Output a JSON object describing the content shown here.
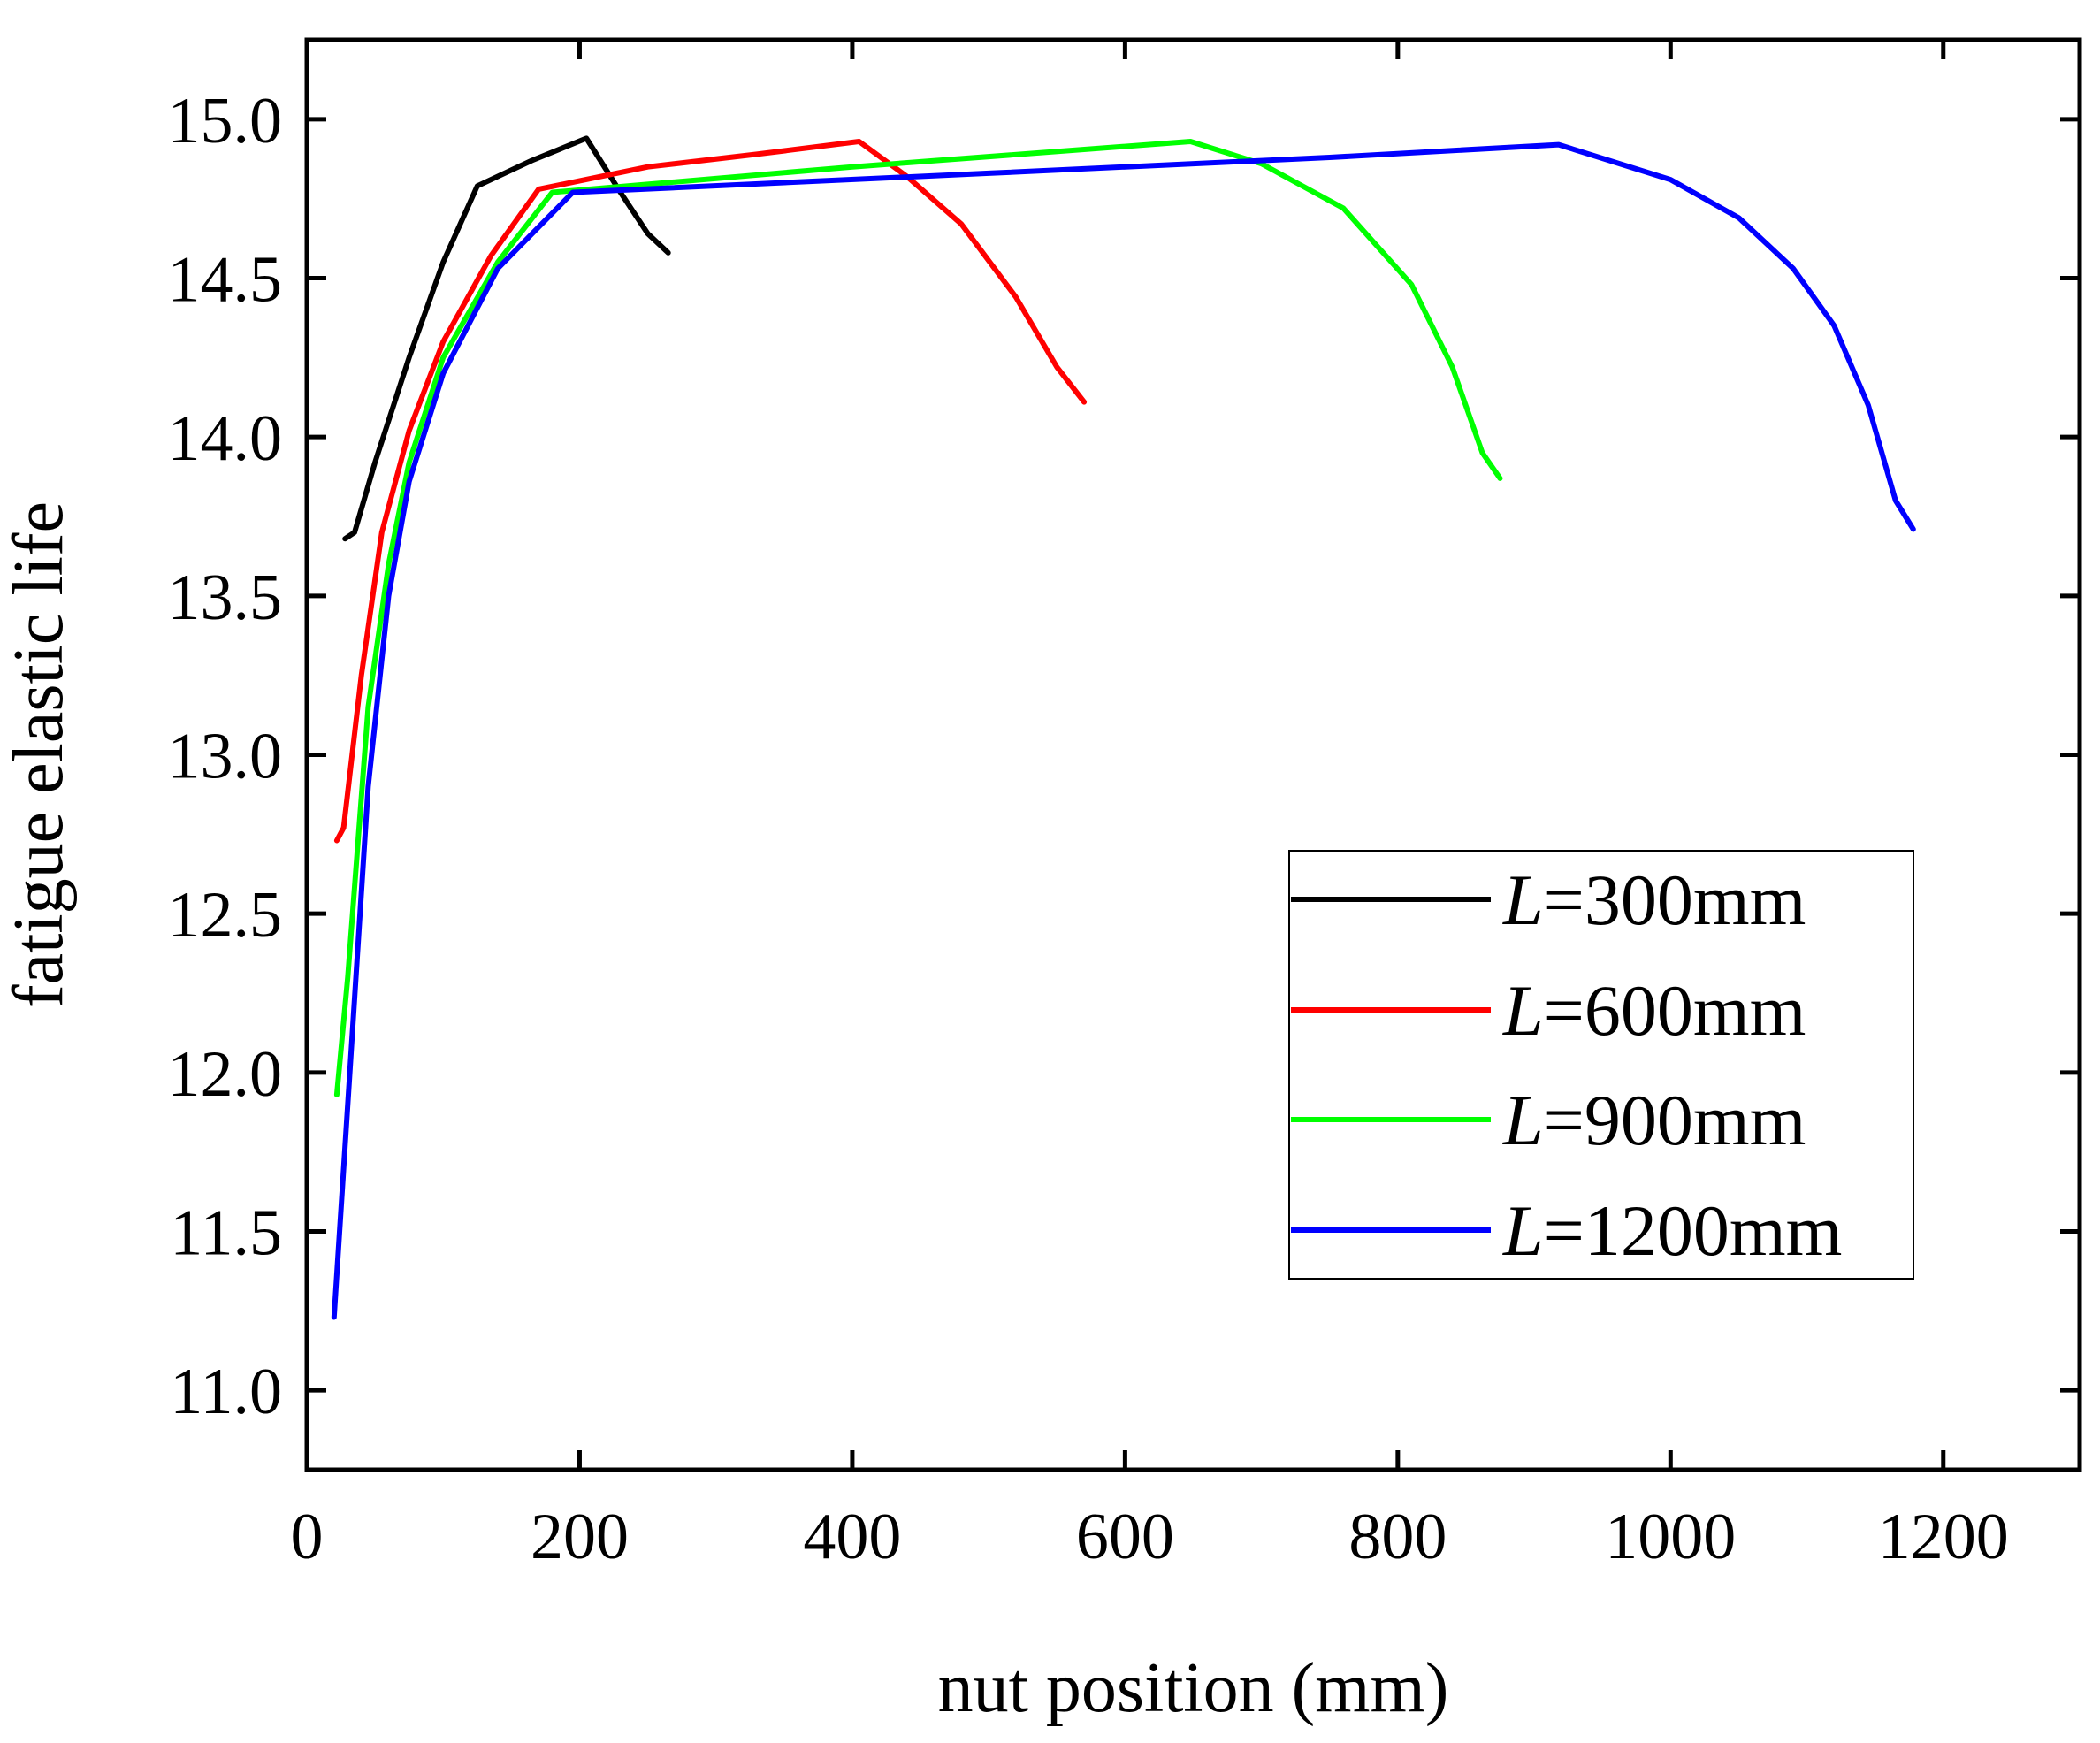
{
  "chart_data": {
    "type": "line",
    "title": "",
    "xlabel": "nut position (mm)",
    "ylabel": "fatigue elastic life",
    "xlim": [
      0,
      1300
    ],
    "ylim": [
      10.75,
      15.25
    ],
    "x_ticks": [
      0,
      200,
      400,
      600,
      800,
      1000,
      1200
    ],
    "x_tick_labels": [
      "0",
      "200",
      "400",
      "600",
      "800",
      "1000",
      "1200"
    ],
    "y_ticks": [
      11.0,
      11.5,
      12.0,
      12.5,
      13.0,
      13.5,
      14.0,
      14.5,
      15.0
    ],
    "y_tick_labels": [
      "11.0",
      "11.5",
      "12.0",
      "12.5",
      "13.0",
      "13.5",
      "14.0",
      "14.5",
      "15.0"
    ],
    "grid": false,
    "legend_position": "bottom-right",
    "series": [
      {
        "name_italic": "L",
        "name_rest": "=300mm",
        "color": "#000000",
        "points": [
          [
            28,
            13.68
          ],
          [
            35,
            13.7
          ],
          [
            50,
            13.92
          ],
          [
            75,
            14.25
          ],
          [
            100,
            14.55
          ],
          [
            125,
            14.79
          ],
          [
            165,
            14.87
          ],
          [
            205,
            14.94
          ],
          [
            230,
            14.77
          ],
          [
            250,
            14.64
          ],
          [
            265,
            14.58
          ]
        ]
      },
      {
        "name_italic": "L",
        "name_rest": "=600mm",
        "color": "#ff0000",
        "points": [
          [
            22,
            12.73
          ],
          [
            27,
            12.77
          ],
          [
            40,
            13.25
          ],
          [
            55,
            13.7
          ],
          [
            75,
            14.02
          ],
          [
            100,
            14.3
          ],
          [
            135,
            14.57
          ],
          [
            170,
            14.78
          ],
          [
            250,
            14.85
          ],
          [
            330,
            14.89
          ],
          [
            405,
            14.93
          ],
          [
            440,
            14.82
          ],
          [
            480,
            14.67
          ],
          [
            520,
            14.44
          ],
          [
            550,
            14.22
          ],
          [
            570,
            14.11
          ]
        ]
      },
      {
        "name_italic": "L",
        "name_rest": "=900mm",
        "color": "#00ff00",
        "points": [
          [
            22,
            11.93
          ],
          [
            30,
            12.3
          ],
          [
            45,
            13.15
          ],
          [
            60,
            13.6
          ],
          [
            75,
            13.92
          ],
          [
            100,
            14.25
          ],
          [
            140,
            14.55
          ],
          [
            180,
            14.77
          ],
          [
            400,
            14.85
          ],
          [
            648,
            14.93
          ],
          [
            700,
            14.86
          ],
          [
            760,
            14.72
          ],
          [
            810,
            14.48
          ],
          [
            840,
            14.22
          ],
          [
            862,
            13.95
          ],
          [
            875,
            13.87
          ]
        ]
      },
      {
        "name_italic": "L",
        "name_rest": "=1200mm",
        "color": "#0000ff",
        "points": [
          [
            20,
            11.23
          ],
          [
            30,
            11.9
          ],
          [
            45,
            12.9
          ],
          [
            60,
            13.5
          ],
          [
            75,
            13.86
          ],
          [
            100,
            14.2
          ],
          [
            140,
            14.53
          ],
          [
            195,
            14.77
          ],
          [
            500,
            14.83
          ],
          [
            750,
            14.88
          ],
          [
            918,
            14.92
          ],
          [
            1000,
            14.81
          ],
          [
            1050,
            14.69
          ],
          [
            1090,
            14.53
          ],
          [
            1120,
            14.35
          ],
          [
            1145,
            14.1
          ],
          [
            1165,
            13.8
          ],
          [
            1178,
            13.71
          ]
        ]
      }
    ]
  }
}
